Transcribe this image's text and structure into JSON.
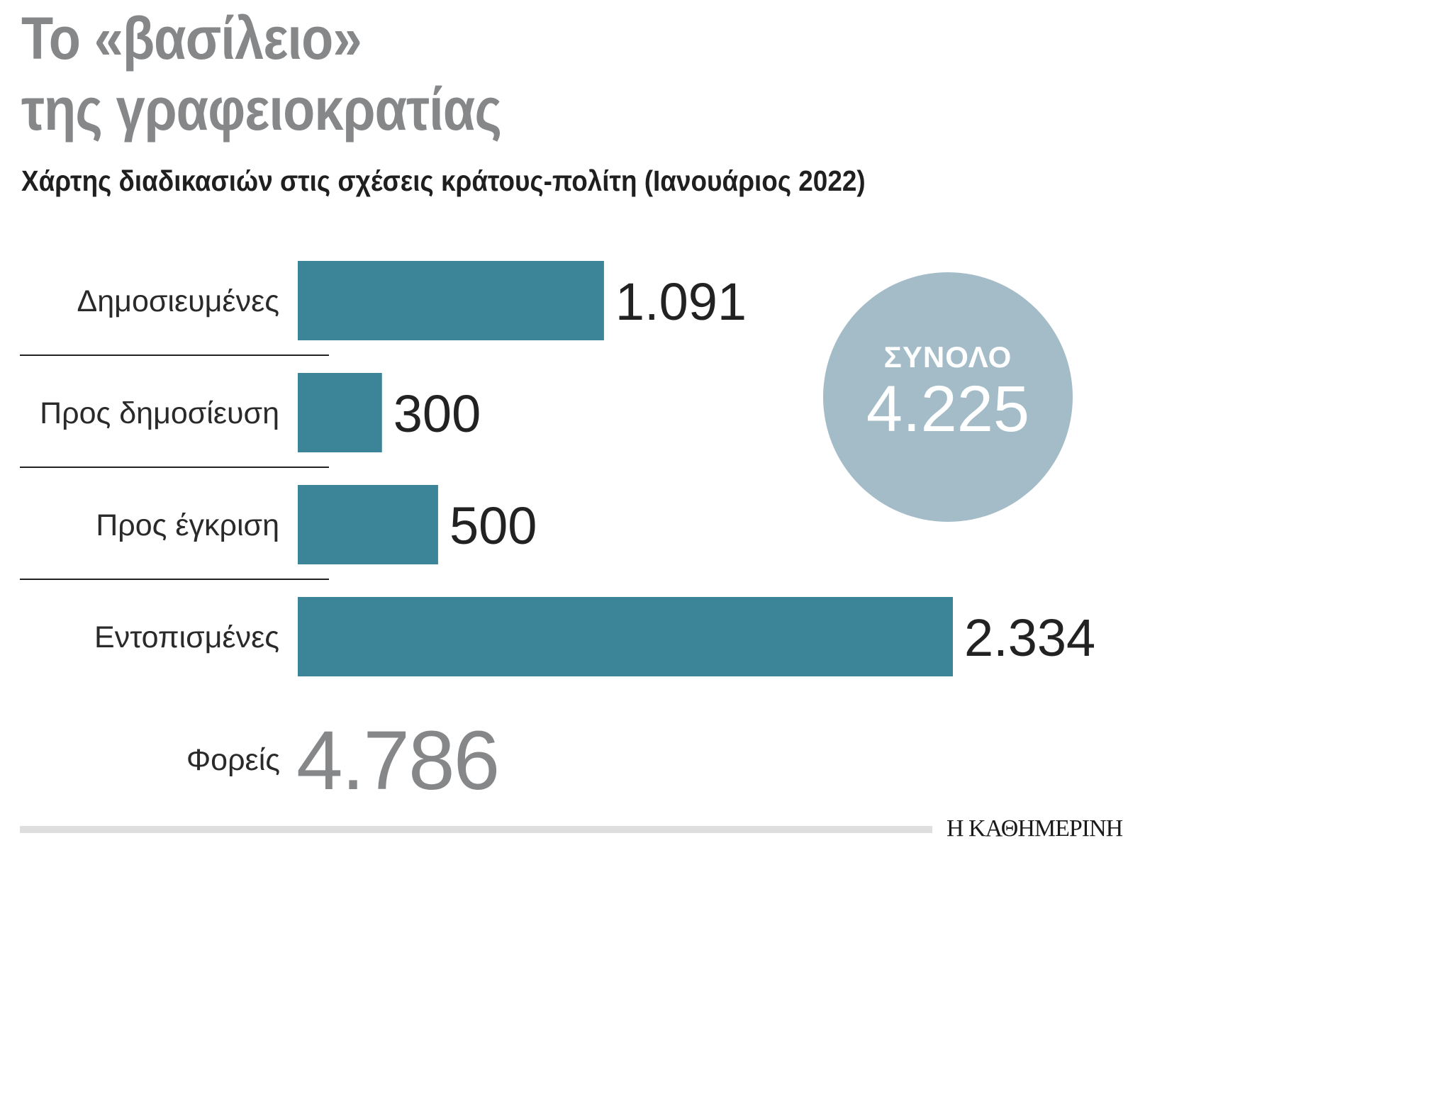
{
  "header": {
    "title_line_1": "Το «βασίλειο»",
    "title_line_2": "της γραφειοκρατίας",
    "subtitle": "Χάρτης διαδικασιών στις σχέσεις κράτους-πολίτη (Ιανουάριος 2022)"
  },
  "chart_data": {
    "type": "bar",
    "orientation": "horizontal",
    "title": "Το «βασίλειο» της γραφειοκρατίας",
    "subtitle": "Χάρτης διαδικασιών στις σχέσεις κράτους-πολίτη (Ιανουάριος 2022)",
    "categories": [
      "Δημοσιευμένες",
      "Προς δημοσίευση",
      "Προς έγκριση",
      "Εντοπισμένες"
    ],
    "values": [
      1091,
      300,
      500,
      2334
    ],
    "value_labels": [
      "1.091",
      "300",
      "500",
      "2.334"
    ],
    "xlim": [
      0,
      2334
    ],
    "grid": false,
    "legend": "none",
    "colors": {
      "bar": "#3c8598",
      "divider": "#222222"
    }
  },
  "total": {
    "label": "ΣΥΝΟΛΟ",
    "value": "4.225",
    "color": "#a3bcc8"
  },
  "foreis": {
    "label": "Φορείς",
    "value": "4.786"
  },
  "footer": {
    "brand": "Η ΚΑΘΗΜΕΡΙΝΗ"
  }
}
